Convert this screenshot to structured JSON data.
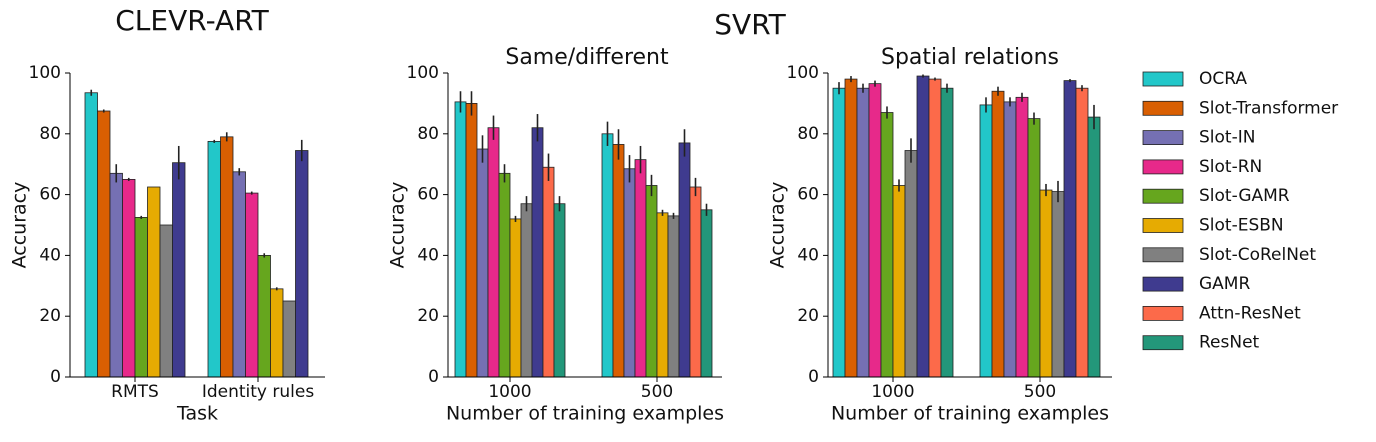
{
  "supertitle": "SVRT",
  "legend": [
    {
      "name": "OCRA",
      "color": "#22c7c9"
    },
    {
      "name": "Slot-Transformer",
      "color": "#d95f02"
    },
    {
      "name": "Slot-IN",
      "color": "#7570b3"
    },
    {
      "name": "Slot-RN",
      "color": "#e7298a"
    },
    {
      "name": "Slot-GAMR",
      "color": "#66a61e"
    },
    {
      "name": "Slot-ESBN",
      "color": "#e6ab02"
    },
    {
      "name": "Slot-CoRelNet",
      "color": "#808080"
    },
    {
      "name": "GAMR",
      "color": "#3f3b8f"
    },
    {
      "name": "Attn-ResNet",
      "color": "#fc6a4a"
    },
    {
      "name": "ResNet",
      "color": "#23977a"
    }
  ],
  "chart_data": [
    {
      "type": "bar",
      "title": "CLEVR-ART",
      "xlabel": "Task",
      "ylabel": "Accuracy",
      "categories": [
        "RMTS",
        "Identity rules"
      ],
      "ylim": [
        0,
        100
      ],
      "yticks": [
        0,
        20,
        40,
        60,
        80,
        100
      ],
      "series": [
        {
          "values": [
            93.5,
            77.5
          ],
          "errors": [
            1,
            0.5
          ]
        },
        {
          "values": [
            87.5,
            79
          ],
          "errors": [
            0.5,
            1.5
          ]
        },
        {
          "values": [
            67,
            67.5
          ],
          "errors": [
            3,
            1.2
          ]
        },
        {
          "values": [
            65,
            60.5
          ],
          "errors": [
            0.5,
            0.5
          ]
        },
        {
          "values": [
            52.5,
            40
          ],
          "errors": [
            0.5,
            0.7
          ]
        },
        {
          "values": [
            62.5,
            29
          ],
          "errors": [
            0,
            0.5
          ]
        },
        {
          "values": [
            50,
            25
          ],
          "errors": [
            0,
            0
          ]
        },
        {
          "values": [
            70.5,
            74.5
          ],
          "errors": [
            5.5,
            3.5
          ]
        }
      ]
    },
    {
      "type": "bar",
      "title": "Same/different",
      "xlabel": "Number of training examples",
      "ylabel": "Accuracy",
      "categories": [
        "1000",
        "500"
      ],
      "ylim": [
        0,
        100
      ],
      "yticks": [
        0,
        20,
        40,
        60,
        80,
        100
      ],
      "series": [
        {
          "values": [
            90.5,
            80
          ],
          "errors": [
            3.5,
            4
          ]
        },
        {
          "values": [
            90,
            76.5
          ],
          "errors": [
            4,
            5
          ]
        },
        {
          "values": [
            75,
            68.5
          ],
          "errors": [
            4.5,
            4.5
          ]
        },
        {
          "values": [
            82,
            71.5
          ],
          "errors": [
            4,
            4.5
          ]
        },
        {
          "values": [
            67,
            63
          ],
          "errors": [
            3,
            3.5
          ]
        },
        {
          "values": [
            52,
            54
          ],
          "errors": [
            1,
            1
          ]
        },
        {
          "values": [
            57,
            53
          ],
          "errors": [
            2.5,
            1
          ]
        },
        {
          "values": [
            82,
            77
          ],
          "errors": [
            4.5,
            4.5
          ]
        },
        {
          "values": [
            69,
            62.5
          ],
          "errors": [
            4.5,
            3
          ]
        },
        {
          "values": [
            57,
            55
          ],
          "errors": [
            2.5,
            2
          ]
        }
      ]
    },
    {
      "type": "bar",
      "title": "Spatial relations",
      "xlabel": "Number of training examples",
      "ylabel": "Accuracy",
      "categories": [
        "1000",
        "500"
      ],
      "ylim": [
        0,
        100
      ],
      "yticks": [
        0,
        20,
        40,
        60,
        80,
        100
      ],
      "series": [
        {
          "values": [
            95,
            89.5
          ],
          "errors": [
            2,
            2.5
          ]
        },
        {
          "values": [
            98,
            94
          ],
          "errors": [
            1,
            1.5
          ]
        },
        {
          "values": [
            95,
            90.5
          ],
          "errors": [
            1.5,
            1.5
          ]
        },
        {
          "values": [
            96.5,
            92
          ],
          "errors": [
            1,
            1.5
          ]
        },
        {
          "values": [
            87,
            85
          ],
          "errors": [
            2,
            2
          ]
        },
        {
          "values": [
            63,
            61.5
          ],
          "errors": [
            2,
            2
          ]
        },
        {
          "values": [
            74.5,
            61
          ],
          "errors": [
            4,
            3.5
          ]
        },
        {
          "values": [
            99,
            97.5
          ],
          "errors": [
            0.5,
            0.5
          ]
        },
        {
          "values": [
            98,
            95
          ],
          "errors": [
            0.5,
            1
          ]
        },
        {
          "values": [
            95,
            85.5
          ],
          "errors": [
            1.5,
            4
          ]
        }
      ]
    }
  ]
}
